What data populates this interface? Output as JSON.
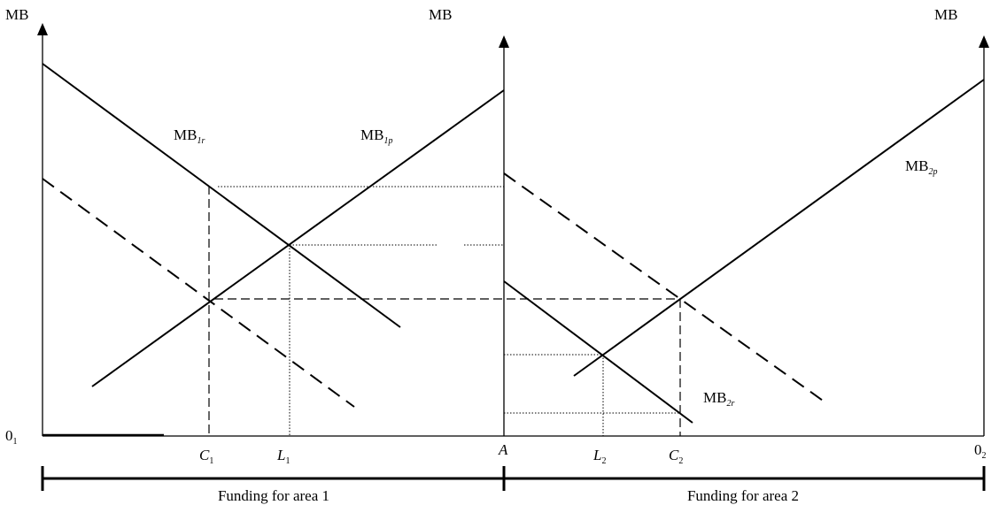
{
  "axes": {
    "y_left": "MB",
    "y_middle": "MB",
    "y_right": "MB",
    "origin_left": "0",
    "origin_left_sub": "1",
    "origin_right": "0",
    "origin_right_sub": "2",
    "point_a": "A"
  },
  "ticks": [
    {
      "letter": "C",
      "sub": "1"
    },
    {
      "letter": "L",
      "sub": "1"
    },
    {
      "letter": "L",
      "sub": "2"
    },
    {
      "letter": "C",
      "sub": "2"
    }
  ],
  "curves": {
    "mb1r": {
      "base": "MB",
      "sub": "1r"
    },
    "mb1p": {
      "base": "MB",
      "sub": "1p"
    },
    "mb2p": {
      "base": "MB",
      "sub": "2p"
    },
    "mb2r": {
      "base": "MB",
      "sub": "2r"
    }
  },
  "funding": {
    "area1": "Funding for area 1",
    "area2": "Funding for area 2"
  }
}
